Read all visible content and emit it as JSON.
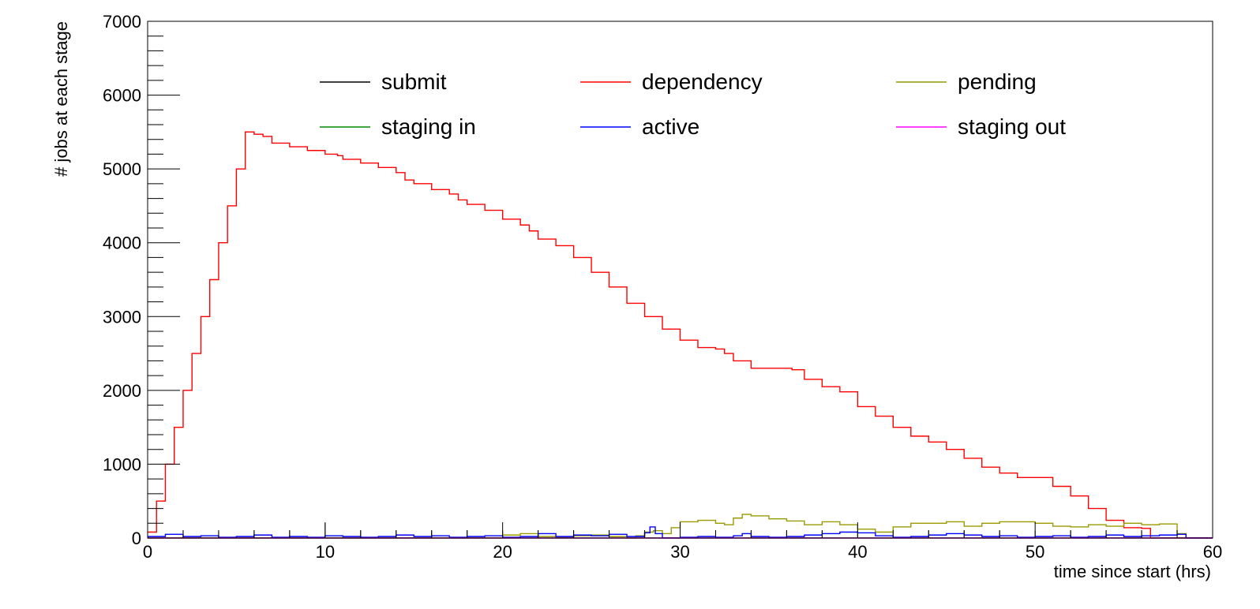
{
  "chart_data": {
    "type": "line",
    "xlabel": "time since start (hrs)",
    "ylabel": "# jobs at each stage",
    "xlim": [
      0,
      60
    ],
    "ylim": [
      0,
      7000
    ],
    "x_ticks": [
      0,
      10,
      20,
      30,
      40,
      50,
      60
    ],
    "y_ticks": [
      0,
      1000,
      2000,
      3000,
      4000,
      5000,
      6000,
      7000
    ],
    "x_tick_labels": [
      "0",
      "10",
      "20",
      "30",
      "40",
      "50",
      "60"
    ],
    "y_tick_labels": [
      "0",
      "1000",
      "2000",
      "3000",
      "4000",
      "5000",
      "6000",
      "7000"
    ],
    "grid": false,
    "legend_position": "top",
    "series": [
      {
        "name": "submit",
        "color": "#000000",
        "style": "spikes",
        "x": [
          2,
          4,
          6,
          8,
          10,
          12,
          14,
          16,
          18,
          20,
          22,
          24,
          26,
          28,
          30,
          32,
          34,
          36,
          38,
          40,
          42,
          44,
          46,
          48,
          50,
          52,
          54,
          56,
          58
        ],
        "y": [
          100,
          90,
          100,
          100,
          200,
          100,
          100,
          100,
          100,
          100,
          100,
          100,
          100,
          100,
          100,
          100,
          100,
          100,
          100,
          100,
          100,
          100,
          100,
          100,
          100,
          100,
          100,
          100,
          100
        ]
      },
      {
        "name": "dependency",
        "color": "#ff0000",
        "style": "step",
        "x": [
          0,
          0.5,
          1,
          1.5,
          2,
          2.5,
          3,
          3.5,
          4,
          4.5,
          5,
          5.5,
          6,
          6.5,
          7,
          8,
          9,
          10,
          10.7,
          11,
          12,
          13,
          14,
          14.5,
          15,
          16,
          17,
          17.5,
          18,
          19,
          20,
          21,
          21.5,
          22,
          23,
          24,
          25,
          26,
          27,
          28,
          29,
          30,
          31,
          32,
          32.5,
          33,
          34,
          35,
          36,
          36.3,
          37,
          38,
          39,
          40,
          41,
          42,
          43,
          44,
          44.5,
          45,
          46,
          47,
          48,
          49,
          50,
          51,
          52,
          53,
          54,
          55,
          56,
          56.5
        ],
        "y": [
          80,
          500,
          1000,
          1500,
          2000,
          2500,
          3000,
          3500,
          4000,
          4500,
          5000,
          5500,
          5470,
          5440,
          5350,
          5300,
          5250,
          5200,
          5180,
          5130,
          5080,
          5020,
          4950,
          4850,
          4800,
          4720,
          4660,
          4580,
          4520,
          4440,
          4320,
          4240,
          4160,
          4050,
          3960,
          3800,
          3600,
          3400,
          3180,
          3000,
          2830,
          2680,
          2580,
          2560,
          2500,
          2400,
          2300,
          2300,
          2300,
          2280,
          2150,
          2050,
          1980,
          1780,
          1650,
          1500,
          1380,
          1300,
          1300,
          1200,
          1080,
          960,
          880,
          820,
          820,
          700,
          570,
          400,
          240,
          140,
          130,
          0
        ]
      },
      {
        "name": "pending",
        "color": "#999900",
        "style": "step",
        "x": [
          0,
          19,
          20,
          21,
          22,
          23,
          24,
          25,
          26,
          27,
          27.5,
          28,
          28.5,
          29,
          29.5,
          30,
          31,
          32,
          32.5,
          33,
          33.5,
          34,
          35,
          36,
          37,
          38,
          39,
          40,
          41,
          42,
          43,
          44,
          45,
          46,
          47,
          48,
          49,
          50,
          51,
          52,
          53,
          54,
          55,
          56,
          57,
          58,
          58.5,
          60
        ],
        "y": [
          0,
          0,
          40,
          60,
          20,
          10,
          30,
          40,
          20,
          0,
          30,
          80,
          100,
          60,
          140,
          220,
          240,
          200,
          180,
          270,
          320,
          300,
          260,
          230,
          180,
          220,
          180,
          120,
          80,
          150,
          200,
          200,
          220,
          160,
          200,
          220,
          220,
          200,
          160,
          150,
          180,
          160,
          200,
          180,
          190,
          60,
          0,
          0
        ]
      },
      {
        "name": "staging in",
        "color": "#008800",
        "style": "step",
        "x": [
          0,
          60
        ],
        "y": [
          0,
          0
        ]
      },
      {
        "name": "active",
        "color": "#0000ff",
        "style": "step",
        "x": [
          0,
          1,
          2,
          3,
          4,
          5,
          6,
          7,
          8,
          9,
          10,
          11,
          12,
          13,
          14,
          15,
          16,
          17,
          18,
          19,
          20,
          21,
          22,
          23,
          24,
          25,
          26,
          27,
          28,
          28.3,
          28.6,
          29,
          30,
          31,
          32,
          33,
          33.5,
          34,
          35,
          36,
          37,
          38,
          39,
          40,
          41,
          42,
          43,
          44,
          45,
          46,
          47,
          48,
          49,
          50,
          51,
          52,
          53,
          54,
          55,
          56,
          57,
          58,
          58.5,
          60
        ],
        "y": [
          20,
          50,
          20,
          30,
          10,
          20,
          40,
          10,
          20,
          10,
          30,
          20,
          10,
          20,
          40,
          20,
          30,
          10,
          20,
          30,
          10,
          20,
          60,
          20,
          40,
          30,
          50,
          20,
          70,
          150,
          60,
          0,
          10,
          20,
          10,
          30,
          60,
          20,
          10,
          20,
          40,
          60,
          80,
          70,
          30,
          10,
          20,
          40,
          60,
          40,
          20,
          30,
          10,
          20,
          30,
          10,
          20,
          40,
          20,
          30,
          40,
          50,
          0,
          0
        ]
      },
      {
        "name": "staging out",
        "color": "#ff00ff",
        "style": "step",
        "x": [
          0,
          60
        ],
        "y": [
          0,
          0
        ]
      }
    ]
  }
}
